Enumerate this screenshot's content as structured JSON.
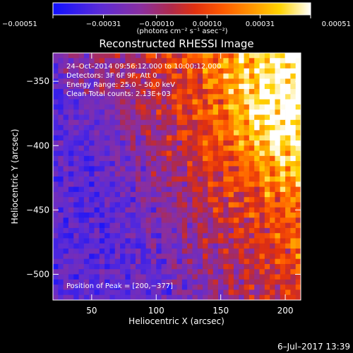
{
  "chart_data": {
    "type": "heatmap",
    "title": "Reconstructed RHESSI Image",
    "xlabel": "Heliocentric X (arcsec)",
    "ylabel": "Heliocentric Y (arcsec)",
    "xlim": [
      20,
      212
    ],
    "ylim": [
      -520,
      -328
    ],
    "x_ticks": [
      50,
      100,
      150,
      200
    ],
    "y_ticks": [
      -500,
      -450,
      -400,
      -350
    ],
    "x_tick_labels": [
      "50",
      "100",
      "150",
      "200"
    ],
    "y_tick_labels": [
      "−500",
      "−450",
      "−400",
      "−350"
    ],
    "grid_cols": 48,
    "grid_rows": 48,
    "peak": [
      200,
      -377
    ],
    "colorbar": {
      "range": [
        -0.00051,
        0.00051
      ],
      "tick_values": [
        -0.00051,
        -0.00031,
        -0.0001,
        0.0001,
        0.00031,
        0.00051
      ],
      "tick_labels": [
        "−0.00051",
        "−0.00031",
        "−0.00010",
        "0.00010",
        "0.00031",
        "0.00051"
      ],
      "unit_label": "(photons cm⁻² s⁻¹ asec⁻²)",
      "colormap": "rainbow-blue-to-white"
    },
    "annotations": [
      "24–Oct–2014 09:56:12.000 to 10:00:12.000",
      "Detectors: 3F 6F 9F, Att 0",
      "Energy Range: 25.0 – 50.0 keV",
      "Clean     Total counts: 2.13E+03"
    ],
    "peak_label": "Position of Peak = [200,−377]"
  },
  "footer": {
    "date": "6–Jul–2017 13:39"
  },
  "colors": {
    "background": "#000000",
    "text": "#ffffff"
  }
}
